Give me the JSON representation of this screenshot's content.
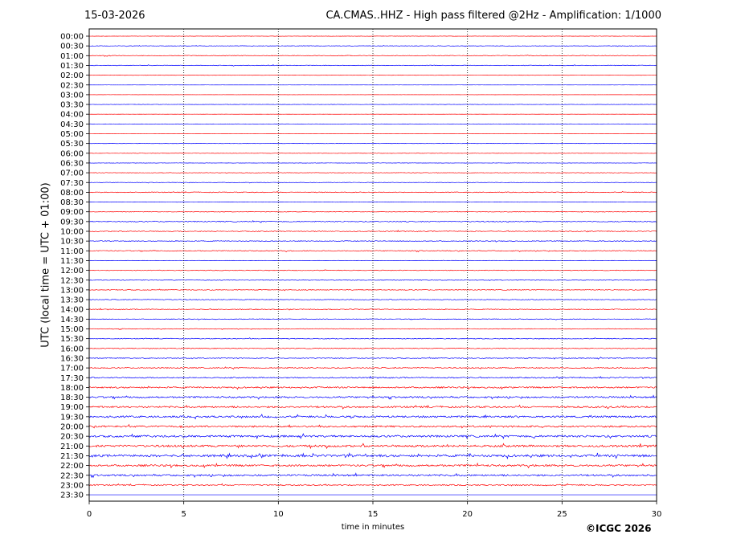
{
  "header": {
    "date": "15-03-2026",
    "title": "CA.CMAS..HHZ - High pass filtered @2Hz - Amplification: 1/1000"
  },
  "footer": {
    "copyright": "©ICGC 2026"
  },
  "chart_data": {
    "type": "line",
    "title": "CA.CMAS..HHZ - High pass filtered @2Hz - Amplification: 1/1000",
    "xlabel": "time in minutes",
    "ylabel": "UTC (local time = UTC + 01:00)",
    "xlim": [
      0,
      30
    ],
    "xticks": [
      0,
      5,
      10,
      15,
      20,
      25,
      30
    ],
    "vertical_gridlines": [
      5,
      10,
      15,
      20,
      25
    ],
    "grid": "dotted vertical at 5-minute marks",
    "series_colors": [
      "#ff0000",
      "#0000ff"
    ],
    "color_pattern": "traces alternate red/blue in pairs (00:00, 00:30 red/blue ...)",
    "rows": [
      {
        "label": "00:00",
        "color": "#ff0000",
        "activity": 0.12
      },
      {
        "label": "00:30",
        "color": "#0000ff",
        "activity": 0.18
      },
      {
        "label": "01:00",
        "color": "#ff0000",
        "activity": 0.25
      },
      {
        "label": "01:30",
        "color": "#0000ff",
        "activity": 0.22
      },
      {
        "label": "02:00",
        "color": "#ff0000",
        "activity": 0.12
      },
      {
        "label": "02:30",
        "color": "#0000ff",
        "activity": 0.05
      },
      {
        "label": "03:00",
        "color": "#ff0000",
        "activity": 0.05
      },
      {
        "label": "03:30",
        "color": "#0000ff",
        "activity": 0.12
      },
      {
        "label": "04:00",
        "color": "#ff0000",
        "activity": 0.05
      },
      {
        "label": "04:30",
        "color": "#0000ff",
        "activity": 0.08
      },
      {
        "label": "05:00",
        "color": "#ff0000",
        "activity": 0.05
      },
      {
        "label": "05:30",
        "color": "#0000ff",
        "activity": 0.1
      },
      {
        "label": "06:00",
        "color": "#ff0000",
        "activity": 0.12
      },
      {
        "label": "06:30",
        "color": "#0000ff",
        "activity": 0.12
      },
      {
        "label": "07:00",
        "color": "#ff0000",
        "activity": 0.18
      },
      {
        "label": "07:30",
        "color": "#0000ff",
        "activity": 0.18
      },
      {
        "label": "08:00",
        "color": "#ff0000",
        "activity": 0.28
      },
      {
        "label": "08:30",
        "color": "#0000ff",
        "activity": 0.12
      },
      {
        "label": "09:00",
        "color": "#ff0000",
        "activity": 0.2
      },
      {
        "label": "09:30",
        "color": "#0000ff",
        "activity": 0.35
      },
      {
        "label": "10:00",
        "color": "#ff0000",
        "activity": 0.32
      },
      {
        "label": "10:30",
        "color": "#0000ff",
        "activity": 0.3
      },
      {
        "label": "11:00",
        "color": "#ff0000",
        "activity": 0.32
      },
      {
        "label": "11:30",
        "color": "#0000ff",
        "activity": 0.15
      },
      {
        "label": "12:00",
        "color": "#ff0000",
        "activity": 0.25
      },
      {
        "label": "12:30",
        "color": "#0000ff",
        "activity": 0.25
      },
      {
        "label": "13:00",
        "color": "#ff0000",
        "activity": 0.28
      },
      {
        "label": "13:30",
        "color": "#0000ff",
        "activity": 0.25
      },
      {
        "label": "14:00",
        "color": "#ff0000",
        "activity": 0.3
      },
      {
        "label": "14:30",
        "color": "#0000ff",
        "activity": 0.25
      },
      {
        "label": "15:00",
        "color": "#ff0000",
        "activity": 0.25
      },
      {
        "label": "15:30",
        "color": "#0000ff",
        "activity": 0.28
      },
      {
        "label": "16:00",
        "color": "#ff0000",
        "activity": 0.3
      },
      {
        "label": "16:30",
        "color": "#0000ff",
        "activity": 0.32
      },
      {
        "label": "17:00",
        "color": "#ff0000",
        "activity": 0.4
      },
      {
        "label": "17:30",
        "color": "#0000ff",
        "activity": 0.42
      },
      {
        "label": "18:00",
        "color": "#ff0000",
        "activity": 0.55
      },
      {
        "label": "18:30",
        "color": "#0000ff",
        "activity": 0.6
      },
      {
        "label": "19:00",
        "color": "#ff0000",
        "activity": 0.62
      },
      {
        "label": "19:30",
        "color": "#0000ff",
        "activity": 0.68
      },
      {
        "label": "20:00",
        "color": "#ff0000",
        "activity": 0.65
      },
      {
        "label": "20:30",
        "color": "#0000ff",
        "activity": 0.75
      },
      {
        "label": "21:00",
        "color": "#ff0000",
        "activity": 0.75
      },
      {
        "label": "21:30",
        "color": "#0000ff",
        "activity": 0.85
      },
      {
        "label": "22:00",
        "color": "#ff0000",
        "activity": 0.7
      },
      {
        "label": "22:30",
        "color": "#0000ff",
        "activity": 0.65
      },
      {
        "label": "23:00",
        "color": "#ff0000",
        "activity": 0.45
      },
      {
        "label": "23:30",
        "color": "#0000ff",
        "activity": 0.0
      }
    ]
  }
}
